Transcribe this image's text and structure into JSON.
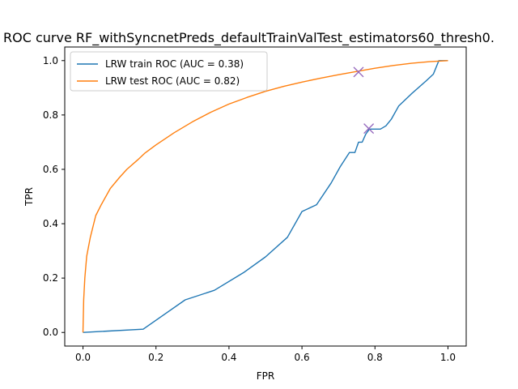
{
  "chart_data": {
    "type": "line",
    "title": "ROC curve RF_withSyncnetPreds_defaultTrainValTest_estimators60_thresh0.",
    "xlabel": "FPR",
    "ylabel": "TPR",
    "xlim": [
      -0.05,
      1.05
    ],
    "ylim": [
      -0.05,
      1.05
    ],
    "xticks": [
      0.0,
      0.2,
      0.4,
      0.6,
      0.8,
      1.0
    ],
    "yticks": [
      0.0,
      0.2,
      0.4,
      0.6,
      0.8,
      1.0
    ],
    "xtick_labels": [
      "0.0",
      "0.2",
      "0.4",
      "0.6",
      "0.8",
      "1.0"
    ],
    "ytick_labels": [
      "0.0",
      "0.2",
      "0.4",
      "0.6",
      "0.8",
      "1.0"
    ],
    "grid": false,
    "legend_position": "upper-left",
    "series": [
      {
        "name": "LRW train ROC (AUC = 0.38)",
        "color": "#1f77b4",
        "x": [
          0.0,
          0.165,
          0.28,
          0.36,
          0.44,
          0.5,
          0.56,
          0.6,
          0.64,
          0.68,
          0.705,
          0.73,
          0.745,
          0.755,
          0.765,
          0.775,
          0.785,
          0.8,
          0.815,
          0.83,
          0.845,
          0.865,
          0.9,
          0.94,
          0.96,
          0.975,
          0.98,
          1.0
        ],
        "y": [
          0.0,
          0.012,
          0.12,
          0.155,
          0.22,
          0.278,
          0.35,
          0.445,
          0.47,
          0.55,
          0.61,
          0.662,
          0.662,
          0.7,
          0.7,
          0.73,
          0.748,
          0.748,
          0.748,
          0.76,
          0.785,
          0.833,
          0.878,
          0.925,
          0.95,
          1.0,
          1.0,
          1.0
        ]
      },
      {
        "name": "LRW test ROC (AUC = 0.82)",
        "color": "#ff7f0e",
        "x": [
          0.0,
          0.002,
          0.005,
          0.01,
          0.02,
          0.035,
          0.05,
          0.075,
          0.1,
          0.12,
          0.15,
          0.17,
          0.2,
          0.25,
          0.3,
          0.35,
          0.4,
          0.45,
          0.5,
          0.55,
          0.6,
          0.65,
          0.7,
          0.75,
          0.8,
          0.85,
          0.9,
          0.95,
          1.0
        ],
        "y": [
          0.0,
          0.12,
          0.2,
          0.28,
          0.35,
          0.43,
          0.47,
          0.53,
          0.57,
          0.6,
          0.635,
          0.66,
          0.69,
          0.735,
          0.775,
          0.81,
          0.84,
          0.865,
          0.887,
          0.905,
          0.921,
          0.935,
          0.948,
          0.96,
          0.972,
          0.982,
          0.99,
          0.996,
          1.0
        ]
      }
    ],
    "markers": [
      {
        "x": 0.755,
        "y": 0.958,
        "color": "#9467bd",
        "symbol": "x"
      },
      {
        "x": 0.783,
        "y": 0.75,
        "color": "#9467bd",
        "symbol": "x"
      }
    ]
  }
}
